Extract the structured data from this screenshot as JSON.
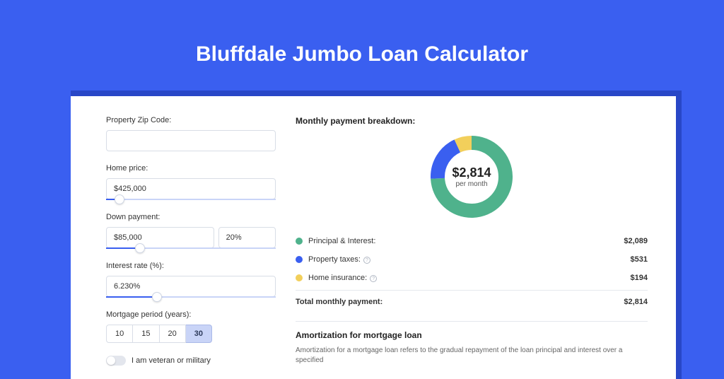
{
  "page_title": "Bluffdale Jumbo Loan Calculator",
  "colors": {
    "page_bg": "#3a5ff0",
    "card_shadow": "#2847c7",
    "green": "#4fb28c",
    "blue": "#3a5ff0",
    "yellow": "#f2cf5b"
  },
  "form": {
    "zip": {
      "label": "Property Zip Code:",
      "value": ""
    },
    "home_price": {
      "label": "Home price:",
      "value": "$425,000",
      "slider_pct": 8
    },
    "down_payment": {
      "label": "Down payment:",
      "value": "$85,000",
      "pct": "20%",
      "slider_pct": 20
    },
    "interest": {
      "label": "Interest rate (%):",
      "value": "6.230%",
      "slider_pct": 30
    },
    "period": {
      "label": "Mortgage period (years):",
      "options": [
        "10",
        "15",
        "20",
        "30"
      ],
      "selected": "30"
    },
    "veteran": {
      "label": "I am veteran or military",
      "on": false
    }
  },
  "breakdown": {
    "title": "Monthly payment breakdown:",
    "donut": {
      "amount": "$2,814",
      "sub": "per month",
      "segments": [
        {
          "label": "Principal & Interest",
          "value": 2089,
          "color": "#4fb28c"
        },
        {
          "label": "Property taxes",
          "value": 531,
          "color": "#3a5ff0"
        },
        {
          "label": "Home insurance",
          "value": 194,
          "color": "#f2cf5b"
        }
      ],
      "stroke_width": 20,
      "radius": 48
    },
    "rows": [
      {
        "dot": "#4fb28c",
        "label": "Principal & Interest:",
        "info": false,
        "value": "$2,089"
      },
      {
        "dot": "#3a5ff0",
        "label": "Property taxes:",
        "info": true,
        "value": "$531"
      },
      {
        "dot": "#f2cf5b",
        "label": "Home insurance:",
        "info": true,
        "value": "$194"
      }
    ],
    "total": {
      "label": "Total monthly payment:",
      "value": "$2,814"
    }
  },
  "amort": {
    "title": "Amortization for mortgage loan",
    "text": "Amortization for a mortgage loan refers to the gradual repayment of the loan principal and interest over a specified"
  }
}
